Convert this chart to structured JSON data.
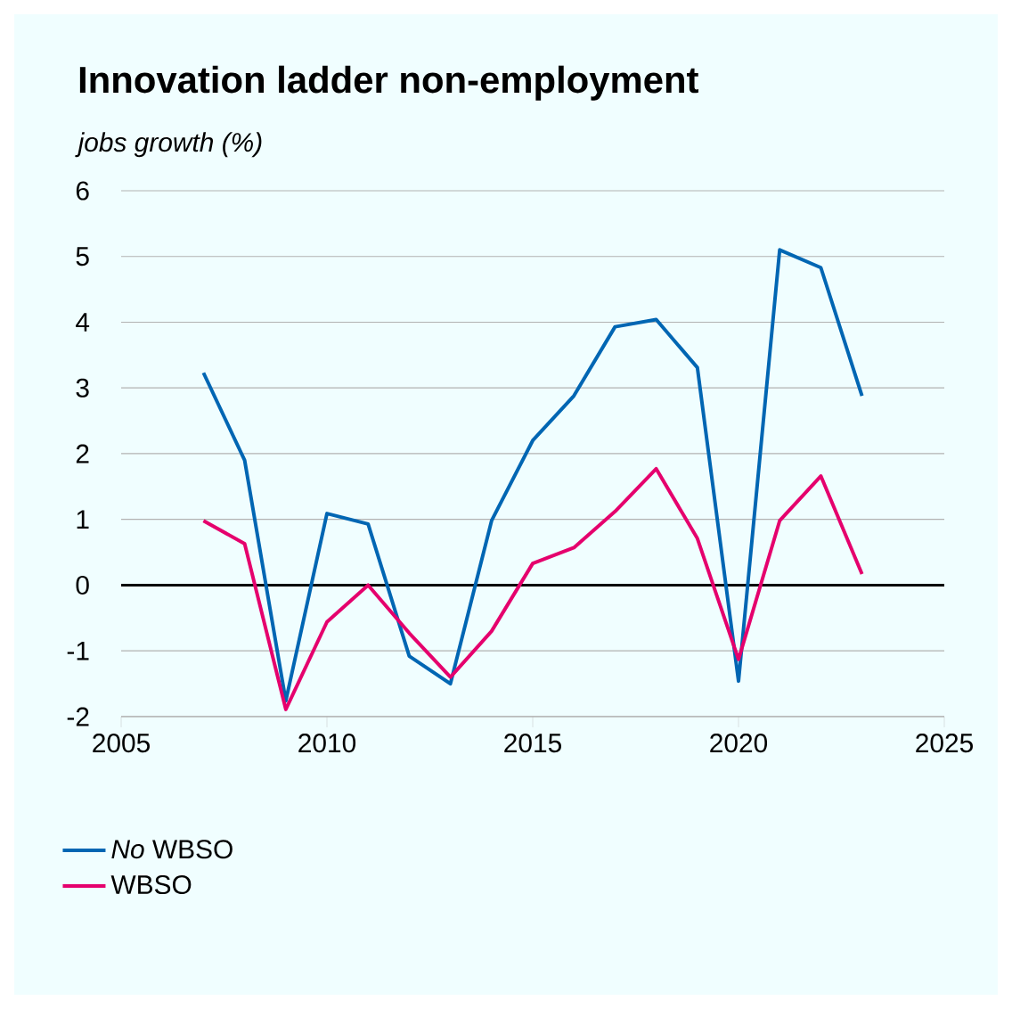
{
  "chart_data": {
    "type": "line",
    "title": "Innovation ladder non-employment",
    "ylabel": "jobs growth (%)",
    "x": [
      2007,
      2008,
      2009,
      2010,
      2011,
      2012,
      2013,
      2014,
      2015,
      2016,
      2017,
      2018,
      2019,
      2020,
      2021,
      2022,
      2023
    ],
    "series": [
      {
        "name": "*No* WBSO",
        "color": "#0066b3",
        "values": [
          3.23,
          1.9,
          -1.76,
          1.09,
          0.93,
          -1.08,
          -1.5,
          0.98,
          2.2,
          2.88,
          3.93,
          4.04,
          3.31,
          -1.46,
          5.1,
          4.83,
          2.88
        ]
      },
      {
        "name": "WBSO",
        "color": "#e5006d",
        "values": [
          0.98,
          0.63,
          -1.89,
          -0.56,
          0.0,
          -0.73,
          -1.4,
          -0.7,
          0.33,
          0.57,
          1.12,
          1.77,
          0.71,
          -1.13,
          0.98,
          1.66,
          0.17
        ]
      }
    ],
    "xlim": [
      2005,
      2025
    ],
    "xticks": [
      2005,
      2010,
      2015,
      2020,
      2025
    ],
    "ylim": [
      -2,
      6
    ],
    "yticks": [
      -2,
      -1,
      0,
      1,
      2,
      3,
      4,
      5,
      6
    ],
    "grid": "y",
    "legend": "bottom left",
    "marker": "none",
    "line_style": "solid",
    "ref_lines": [
      {
        "axis": "y",
        "value": 0,
        "color": "#000000"
      }
    ]
  }
}
